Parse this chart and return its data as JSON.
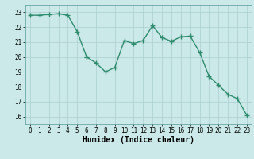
{
  "xlabel": "Humidex (Indice chaleur)",
  "ylabel": "",
  "x": [
    0,
    1,
    2,
    3,
    4,
    5,
    6,
    7,
    8,
    9,
    10,
    11,
    12,
    13,
    14,
    15,
    16,
    17,
    18,
    19,
    20,
    21,
    22,
    23
  ],
  "y": [
    22.8,
    22.8,
    22.85,
    22.9,
    22.8,
    21.7,
    20.0,
    19.6,
    19.0,
    19.3,
    21.1,
    20.9,
    21.1,
    22.1,
    21.3,
    21.05,
    21.35,
    21.4,
    20.3,
    18.7,
    18.1,
    17.5,
    17.2,
    16.1
  ],
  "line_color": "#2e8b6e",
  "marker": "D",
  "marker_size": 2.0,
  "line_width": 1.0,
  "bg_color": "#cce9e9",
  "grid_color": "#aacfcf",
  "ylim": [
    15.5,
    23.5
  ],
  "xlim": [
    -0.5,
    23.5
  ],
  "yticks": [
    16,
    17,
    18,
    19,
    20,
    21,
    22,
    23
  ],
  "xticks": [
    0,
    1,
    2,
    3,
    4,
    5,
    6,
    7,
    8,
    9,
    10,
    11,
    12,
    13,
    14,
    15,
    16,
    17,
    18,
    19,
    20,
    21,
    22,
    23
  ],
  "tick_fontsize": 5.5,
  "xlabel_fontsize": 7.0
}
